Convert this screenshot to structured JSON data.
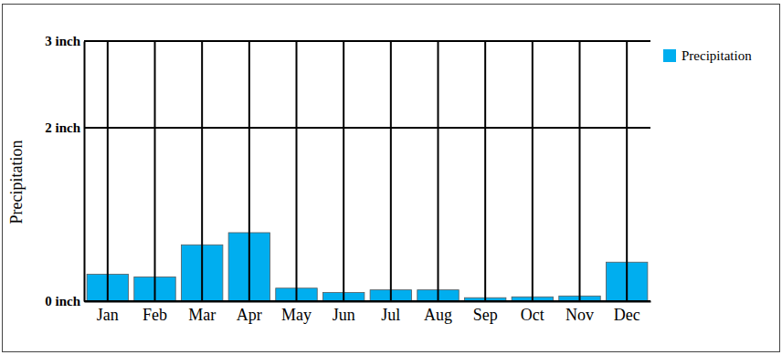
{
  "chart_data": {
    "type": "bar",
    "y_label": "Precipitation",
    "categories": [
      "Jan",
      "Feb",
      "Mar",
      "Apr",
      "May",
      "Jun",
      "Jul",
      "Aug",
      "Sep",
      "Oct",
      "Nov",
      "Dec"
    ],
    "series": [
      {
        "name": "Precipitation",
        "color": "#00aeef",
        "values": [
          0.31,
          0.28,
          0.65,
          0.79,
          0.15,
          0.1,
          0.13,
          0.13,
          0.04,
          0.05,
          0.06,
          0.45
        ]
      }
    ],
    "ylim": [
      0,
      3
    ],
    "yticks": [
      {
        "value": 0,
        "label": "0 inch"
      },
      {
        "value": 2,
        "label": "2 inch"
      },
      {
        "value": 3,
        "label": "3 inch"
      }
    ],
    "grid": true,
    "legend": "right"
  }
}
